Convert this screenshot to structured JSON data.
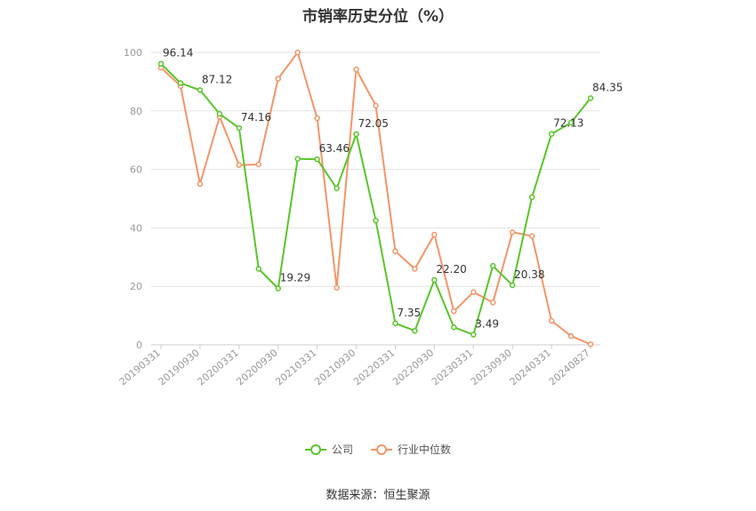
{
  "chart_data": {
    "type": "line",
    "title": "市销率历史分位（%）",
    "xlabel": "",
    "ylabel": "",
    "ylim": [
      0,
      100
    ],
    "yticks": [
      0,
      20,
      40,
      60,
      80,
      100
    ],
    "grid": true,
    "legend_position": "bottom",
    "x": [
      "20190331",
      "20190630",
      "20190930",
      "20191231",
      "20200331",
      "20200630",
      "20200930",
      "20201231",
      "20210331",
      "20210630",
      "20210930",
      "20211231",
      "20220331",
      "20220630",
      "20220930",
      "20221231",
      "20230331",
      "20230630",
      "20230930",
      "20231231",
      "20240331",
      "20240630",
      "20240827"
    ],
    "x_tick_labels": [
      "20190331",
      "20190930",
      "20200331",
      "20200930",
      "20210331",
      "20210930",
      "20220331",
      "20220930",
      "20230331",
      "20230930",
      "20240331",
      "20240827"
    ],
    "series": [
      {
        "name": "公司",
        "color": "#5ac52c",
        "values": [
          96.14,
          89.5,
          87.12,
          79.0,
          74.16,
          26.0,
          19.29,
          63.6,
          63.46,
          53.5,
          72.05,
          42.5,
          7.35,
          4.8,
          22.2,
          6.0,
          3.49,
          27.0,
          20.38,
          50.5,
          72.13,
          76.0,
          84.35
        ],
        "data_labels": [
          {
            "index": 0,
            "text": "96.14"
          },
          {
            "index": 2,
            "text": "87.12"
          },
          {
            "index": 4,
            "text": "74.16"
          },
          {
            "index": 6,
            "text": "19.29"
          },
          {
            "index": 8,
            "text": "63.46"
          },
          {
            "index": 10,
            "text": "72.05"
          },
          {
            "index": 12,
            "text": "7.35"
          },
          {
            "index": 14,
            "text": "22.20"
          },
          {
            "index": 16,
            "text": "3.49"
          },
          {
            "index": 18,
            "text": "20.38"
          },
          {
            "index": 20,
            "text": "72.13"
          },
          {
            "index": 22,
            "text": "84.35"
          }
        ]
      },
      {
        "name": "行业中位数",
        "color": "#f4956a",
        "values": [
          94.8,
          88.5,
          55.0,
          78.0,
          61.5,
          61.7,
          91.0,
          100.0,
          77.5,
          19.5,
          94.2,
          81.8,
          32.0,
          26.0,
          37.7,
          11.5,
          18.0,
          14.5,
          38.5,
          37.2,
          8.2,
          3.0,
          0.2
        ]
      }
    ]
  },
  "footer": {
    "source": "数据来源：恒生聚源"
  }
}
